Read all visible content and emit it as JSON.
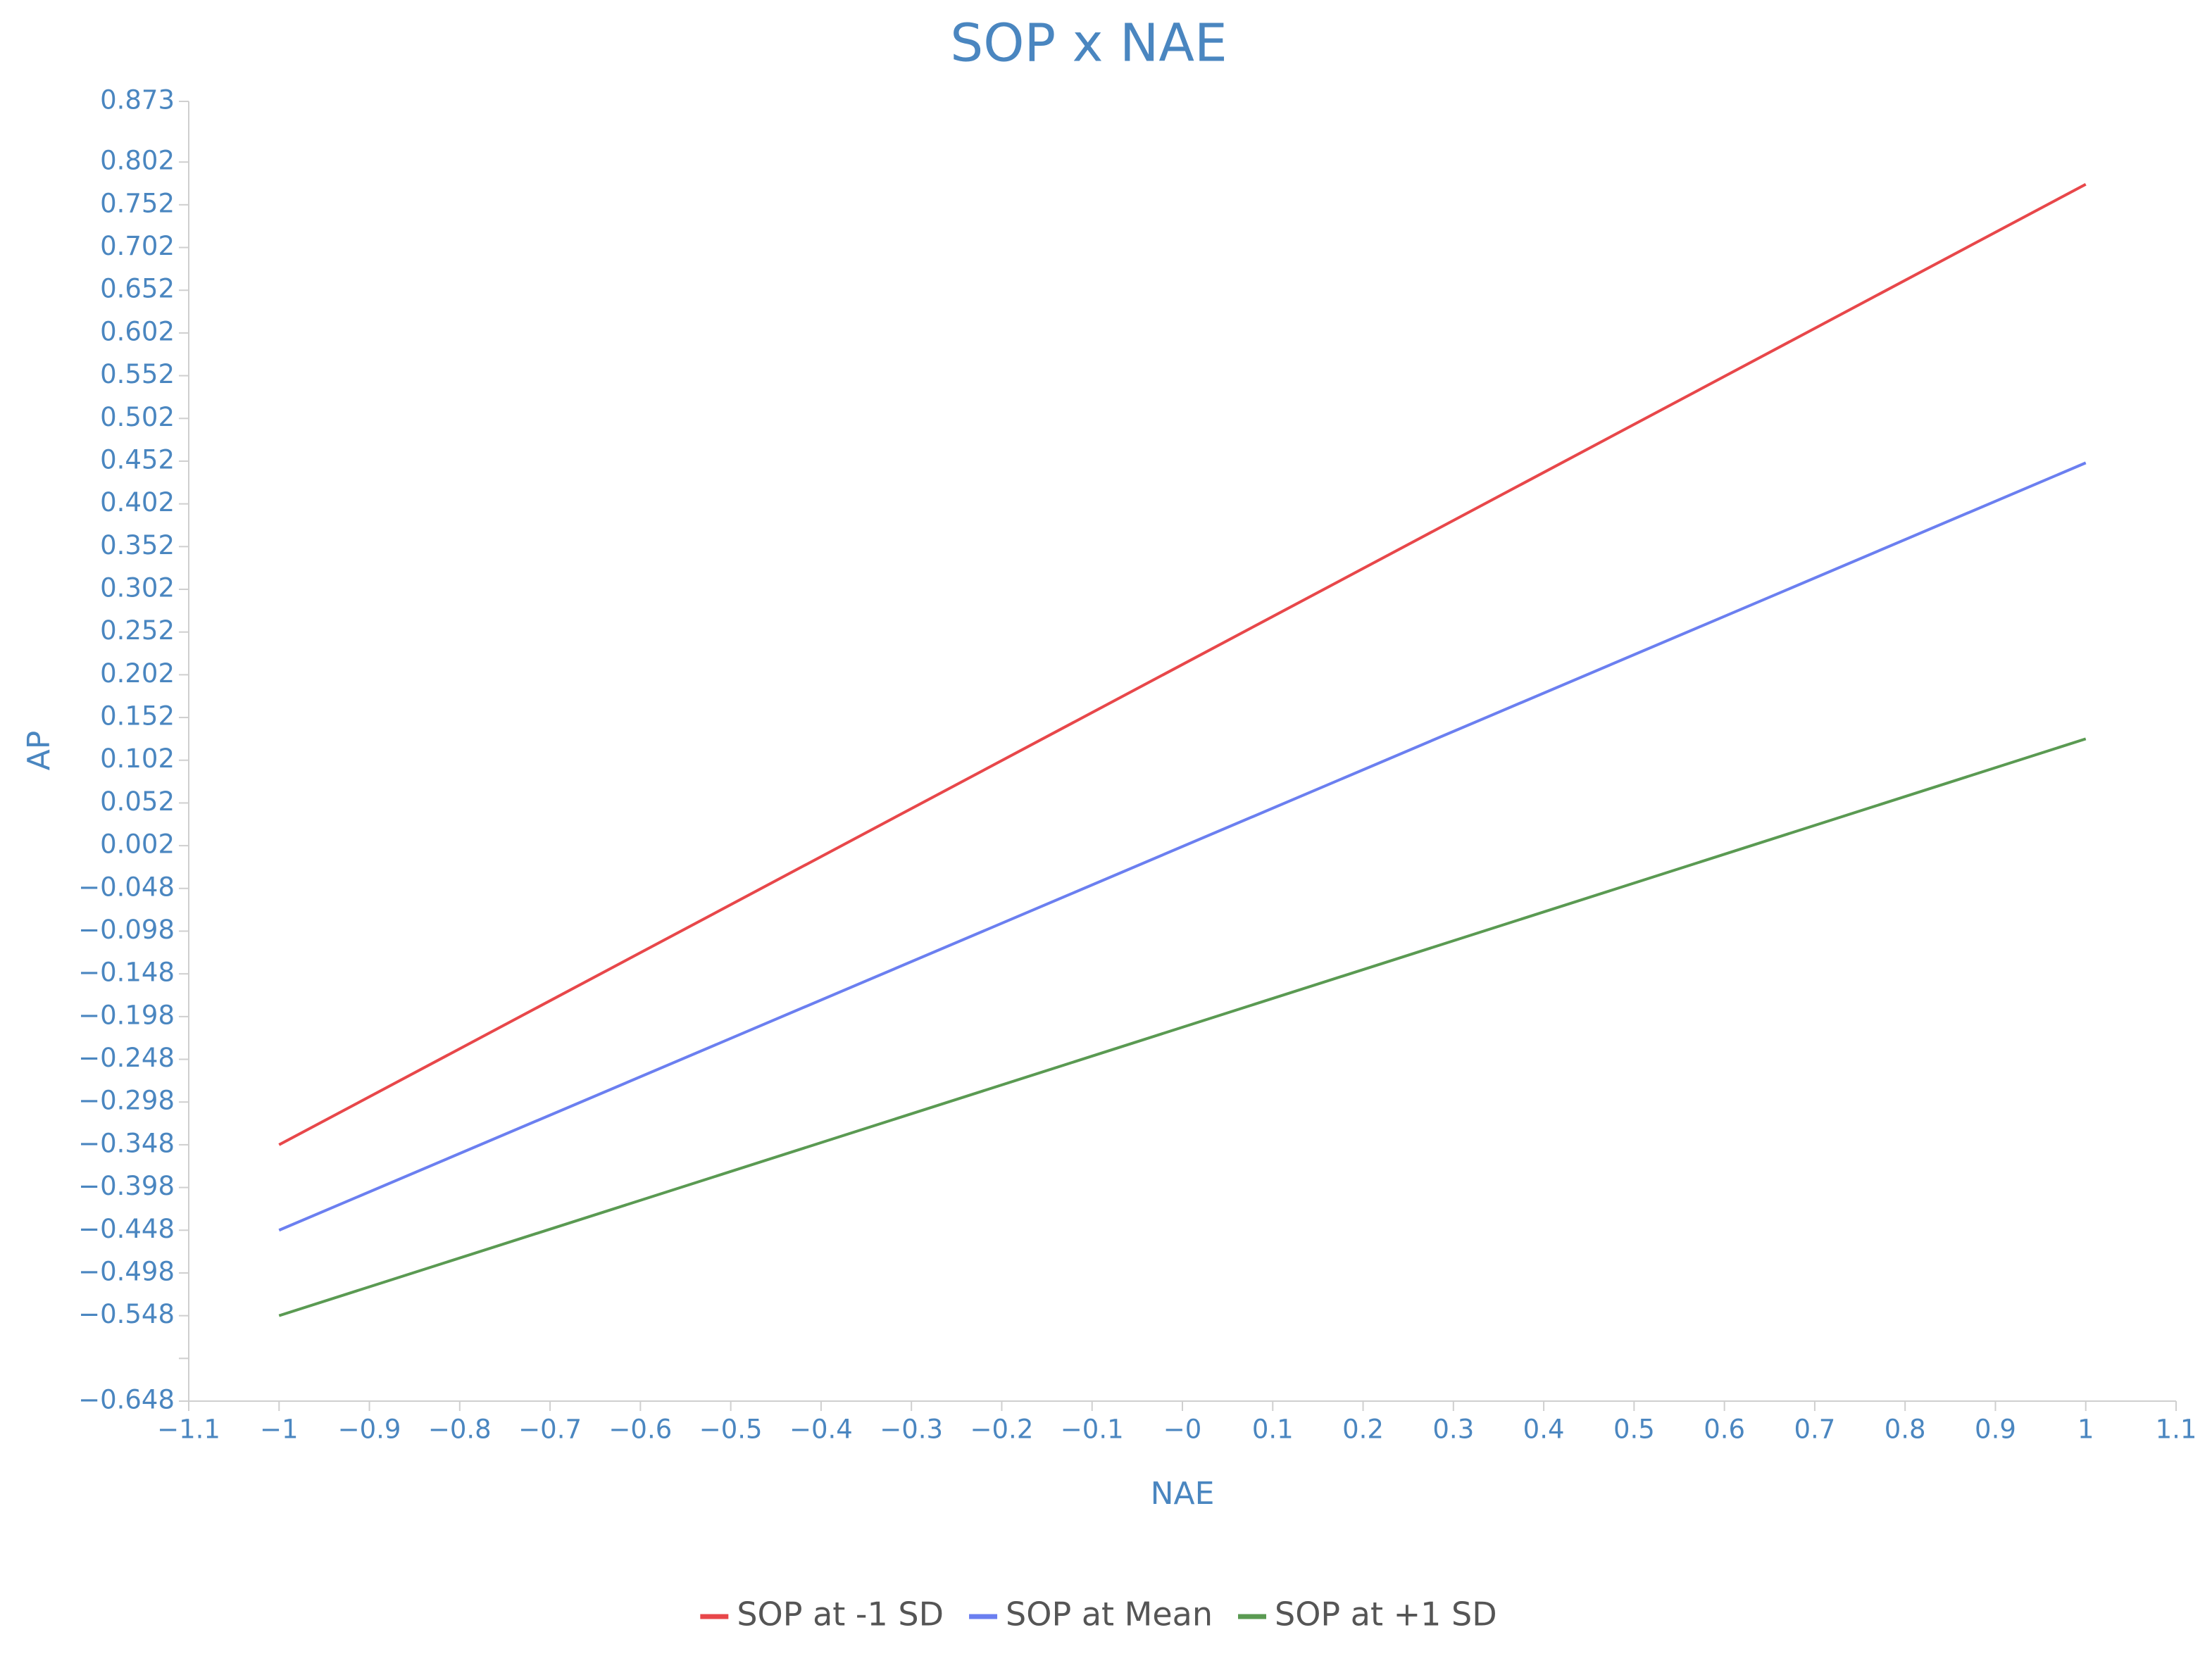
{
  "chart_data": {
    "type": "line",
    "title": "SOP x NAE",
    "x_label": "NAE",
    "y_label": "AP",
    "x": [
      -1,
      1
    ],
    "series": [
      {
        "name": "SOP at -1 SD",
        "color": "#e8474a",
        "values": [
          -0.348,
          0.776
        ]
      },
      {
        "name": "SOP at Mean",
        "color": "#6b7ff0",
        "values": [
          -0.448,
          0.45
        ]
      },
      {
        "name": "SOP at +1 SD",
        "color": "#5a9a52",
        "values": [
          -0.548,
          0.127
        ]
      }
    ],
    "xlim": [
      -1.1,
      1.1
    ],
    "xticks": [
      {
        "value": -1.1,
        "label": "−1.1"
      },
      {
        "value": -1,
        "label": "−1"
      },
      {
        "value": -0.9,
        "label": "−0.9"
      },
      {
        "value": -0.8,
        "label": "−0.8"
      },
      {
        "value": -0.7,
        "label": "−0.7"
      },
      {
        "value": -0.6,
        "label": "−0.6"
      },
      {
        "value": -0.5,
        "label": "−0.5"
      },
      {
        "value": -0.4,
        "label": "−0.4"
      },
      {
        "value": -0.3,
        "label": "−0.3"
      },
      {
        "value": -0.2,
        "label": "−0.2"
      },
      {
        "value": -0.1,
        "label": "−0.1"
      },
      {
        "value": 0,
        "label": "−0"
      },
      0.1,
      0.2,
      0.3,
      0.4,
      0.5,
      0.6,
      0.7,
      0.8,
      0.9,
      1,
      1.1
    ],
    "ylim": [
      -0.648,
      0.873
    ],
    "yticks": [
      0.873,
      0.802,
      0.752,
      0.702,
      0.652,
      0.602,
      0.552,
      0.502,
      0.452,
      0.402,
      0.352,
      0.302,
      0.252,
      0.202,
      0.152,
      0.102,
      0.052,
      0.002,
      {
        "value": -0.048,
        "label": "−0.048"
      },
      {
        "value": -0.098,
        "label": "−0.098"
      },
      {
        "value": -0.148,
        "label": "−0.148"
      },
      {
        "value": -0.198,
        "label": "−0.198"
      },
      {
        "value": -0.248,
        "label": "−0.248"
      },
      {
        "value": -0.298,
        "label": "−0.298"
      },
      {
        "value": -0.348,
        "label": "−0.348"
      },
      {
        "value": -0.398,
        "label": "−0.398"
      },
      {
        "value": -0.448,
        "label": "−0.448"
      },
      {
        "value": -0.498,
        "label": "−0.498"
      },
      {
        "value": -0.548,
        "label": "−0.548"
      },
      {
        "value": -0.598,
        "label": null
      },
      {
        "value": -0.648,
        "label": "−0.648"
      }
    ],
    "legend": "bottom"
  }
}
